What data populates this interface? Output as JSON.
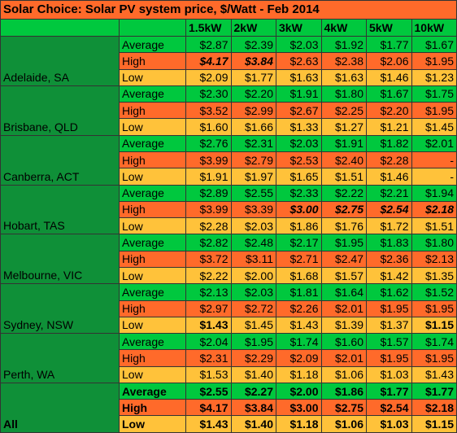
{
  "title": "Solar Choice: Solar PV system price, $/Watt - Feb 2014",
  "columns": [
    "1.5kW",
    "2kW",
    "3kW",
    "4kW",
    "5kW",
    "10kW"
  ],
  "groups": [
    {
      "name": "Adelaide, SA",
      "rows": [
        {
          "label": "Average",
          "values": [
            "$2.87",
            "$2.39",
            "$2.03",
            "$1.92",
            "$1.77",
            "$1.67"
          ]
        },
        {
          "label": "High",
          "values": [
            "$4.17",
            "$3.84",
            "$2.63",
            "$2.38",
            "$2.06",
            "$1.95"
          ]
        },
        {
          "label": "Low",
          "values": [
            "$2.09",
            "$1.77",
            "$1.63",
            "$1.63",
            "$1.46",
            "$1.23"
          ]
        }
      ]
    },
    {
      "name": "Brisbane, QLD",
      "rows": [
        {
          "label": "Average",
          "values": [
            "$2.30",
            "$2.20",
            "$1.91",
            "$1.80",
            "$1.67",
            "$1.75"
          ]
        },
        {
          "label": "High",
          "values": [
            "$3.52",
            "$2.99",
            "$2.67",
            "$2.25",
            "$2.20",
            "$1.95"
          ]
        },
        {
          "label": "Low",
          "values": [
            "$1.60",
            "$1.66",
            "$1.33",
            "$1.27",
            "$1.21",
            "$1.45"
          ]
        }
      ]
    },
    {
      "name": "Canberra, ACT",
      "rows": [
        {
          "label": "Average",
          "values": [
            "$2.76",
            "$2.31",
            "$2.03",
            "$1.91",
            "$1.82",
            "$2.01"
          ]
        },
        {
          "label": "High",
          "values": [
            "$3.99",
            "$2.79",
            "$2.53",
            "$2.40",
            "$2.28",
            "-"
          ]
        },
        {
          "label": "Low",
          "values": [
            "$1.91",
            "$1.97",
            "$1.65",
            "$1.51",
            "$1.46",
            "-"
          ]
        }
      ]
    },
    {
      "name": "Hobart, TAS",
      "rows": [
        {
          "label": "Average",
          "values": [
            "$2.89",
            "$2.55",
            "$2.33",
            "$2.22",
            "$2.21",
            "$1.94"
          ]
        },
        {
          "label": "High",
          "values": [
            "$3.99",
            "$3.39",
            "$3.00",
            "$2.75",
            "$2.54",
            "$2.18"
          ]
        },
        {
          "label": "Low",
          "values": [
            "$2.28",
            "$2.03",
            "$1.86",
            "$1.76",
            "$1.72",
            "$1.51"
          ]
        }
      ]
    },
    {
      "name": "Melbourne, VIC",
      "rows": [
        {
          "label": "Average",
          "values": [
            "$2.82",
            "$2.48",
            "$2.17",
            "$1.95",
            "$1.83",
            "$1.80"
          ]
        },
        {
          "label": "High",
          "values": [
            "$3.72",
            "$3.11",
            "$2.71",
            "$2.47",
            "$2.36",
            "$2.13"
          ]
        },
        {
          "label": "Low",
          "values": [
            "$2.22",
            "$2.00",
            "$1.68",
            "$1.57",
            "$1.42",
            "$1.35"
          ]
        }
      ]
    },
    {
      "name": "Sydney, NSW",
      "rows": [
        {
          "label": "Average",
          "values": [
            "$2.13",
            "$2.03",
            "$1.81",
            "$1.64",
            "$1.62",
            "$1.52"
          ]
        },
        {
          "label": "High",
          "values": [
            "$2.97",
            "$2.72",
            "$2.26",
            "$2.01",
            "$1.95",
            "$1.95"
          ]
        },
        {
          "label": "Low",
          "values": [
            "$1.43",
            "$1.45",
            "$1.43",
            "$1.39",
            "$1.37",
            "$1.15"
          ]
        }
      ]
    },
    {
      "name": "Perth, WA",
      "rows": [
        {
          "label": "Average",
          "values": [
            "$2.04",
            "$1.95",
            "$1.74",
            "$1.60",
            "$1.57",
            "$1.74"
          ]
        },
        {
          "label": "High",
          "values": [
            "$2.31",
            "$2.29",
            "$2.09",
            "$2.01",
            "$1.95",
            "$1.95"
          ]
        },
        {
          "label": "Low",
          "values": [
            "$1.53",
            "$1.40",
            "$1.18",
            "$1.06",
            "$1.03",
            "$1.43"
          ]
        }
      ]
    },
    {
      "name": "All",
      "rows": [
        {
          "label": "Average",
          "values": [
            "$2.55",
            "$2.27",
            "$2.00",
            "$1.86",
            "$1.77",
            "$1.77"
          ]
        },
        {
          "label": "High",
          "values": [
            "$4.17",
            "$3.84",
            "$3.00",
            "$2.75",
            "$2.54",
            "$2.18"
          ]
        },
        {
          "label": "Low",
          "values": [
            "$1.43",
            "$1.40",
            "$1.18",
            "$1.06",
            "$1.03",
            "$1.15"
          ]
        }
      ]
    }
  ]
}
